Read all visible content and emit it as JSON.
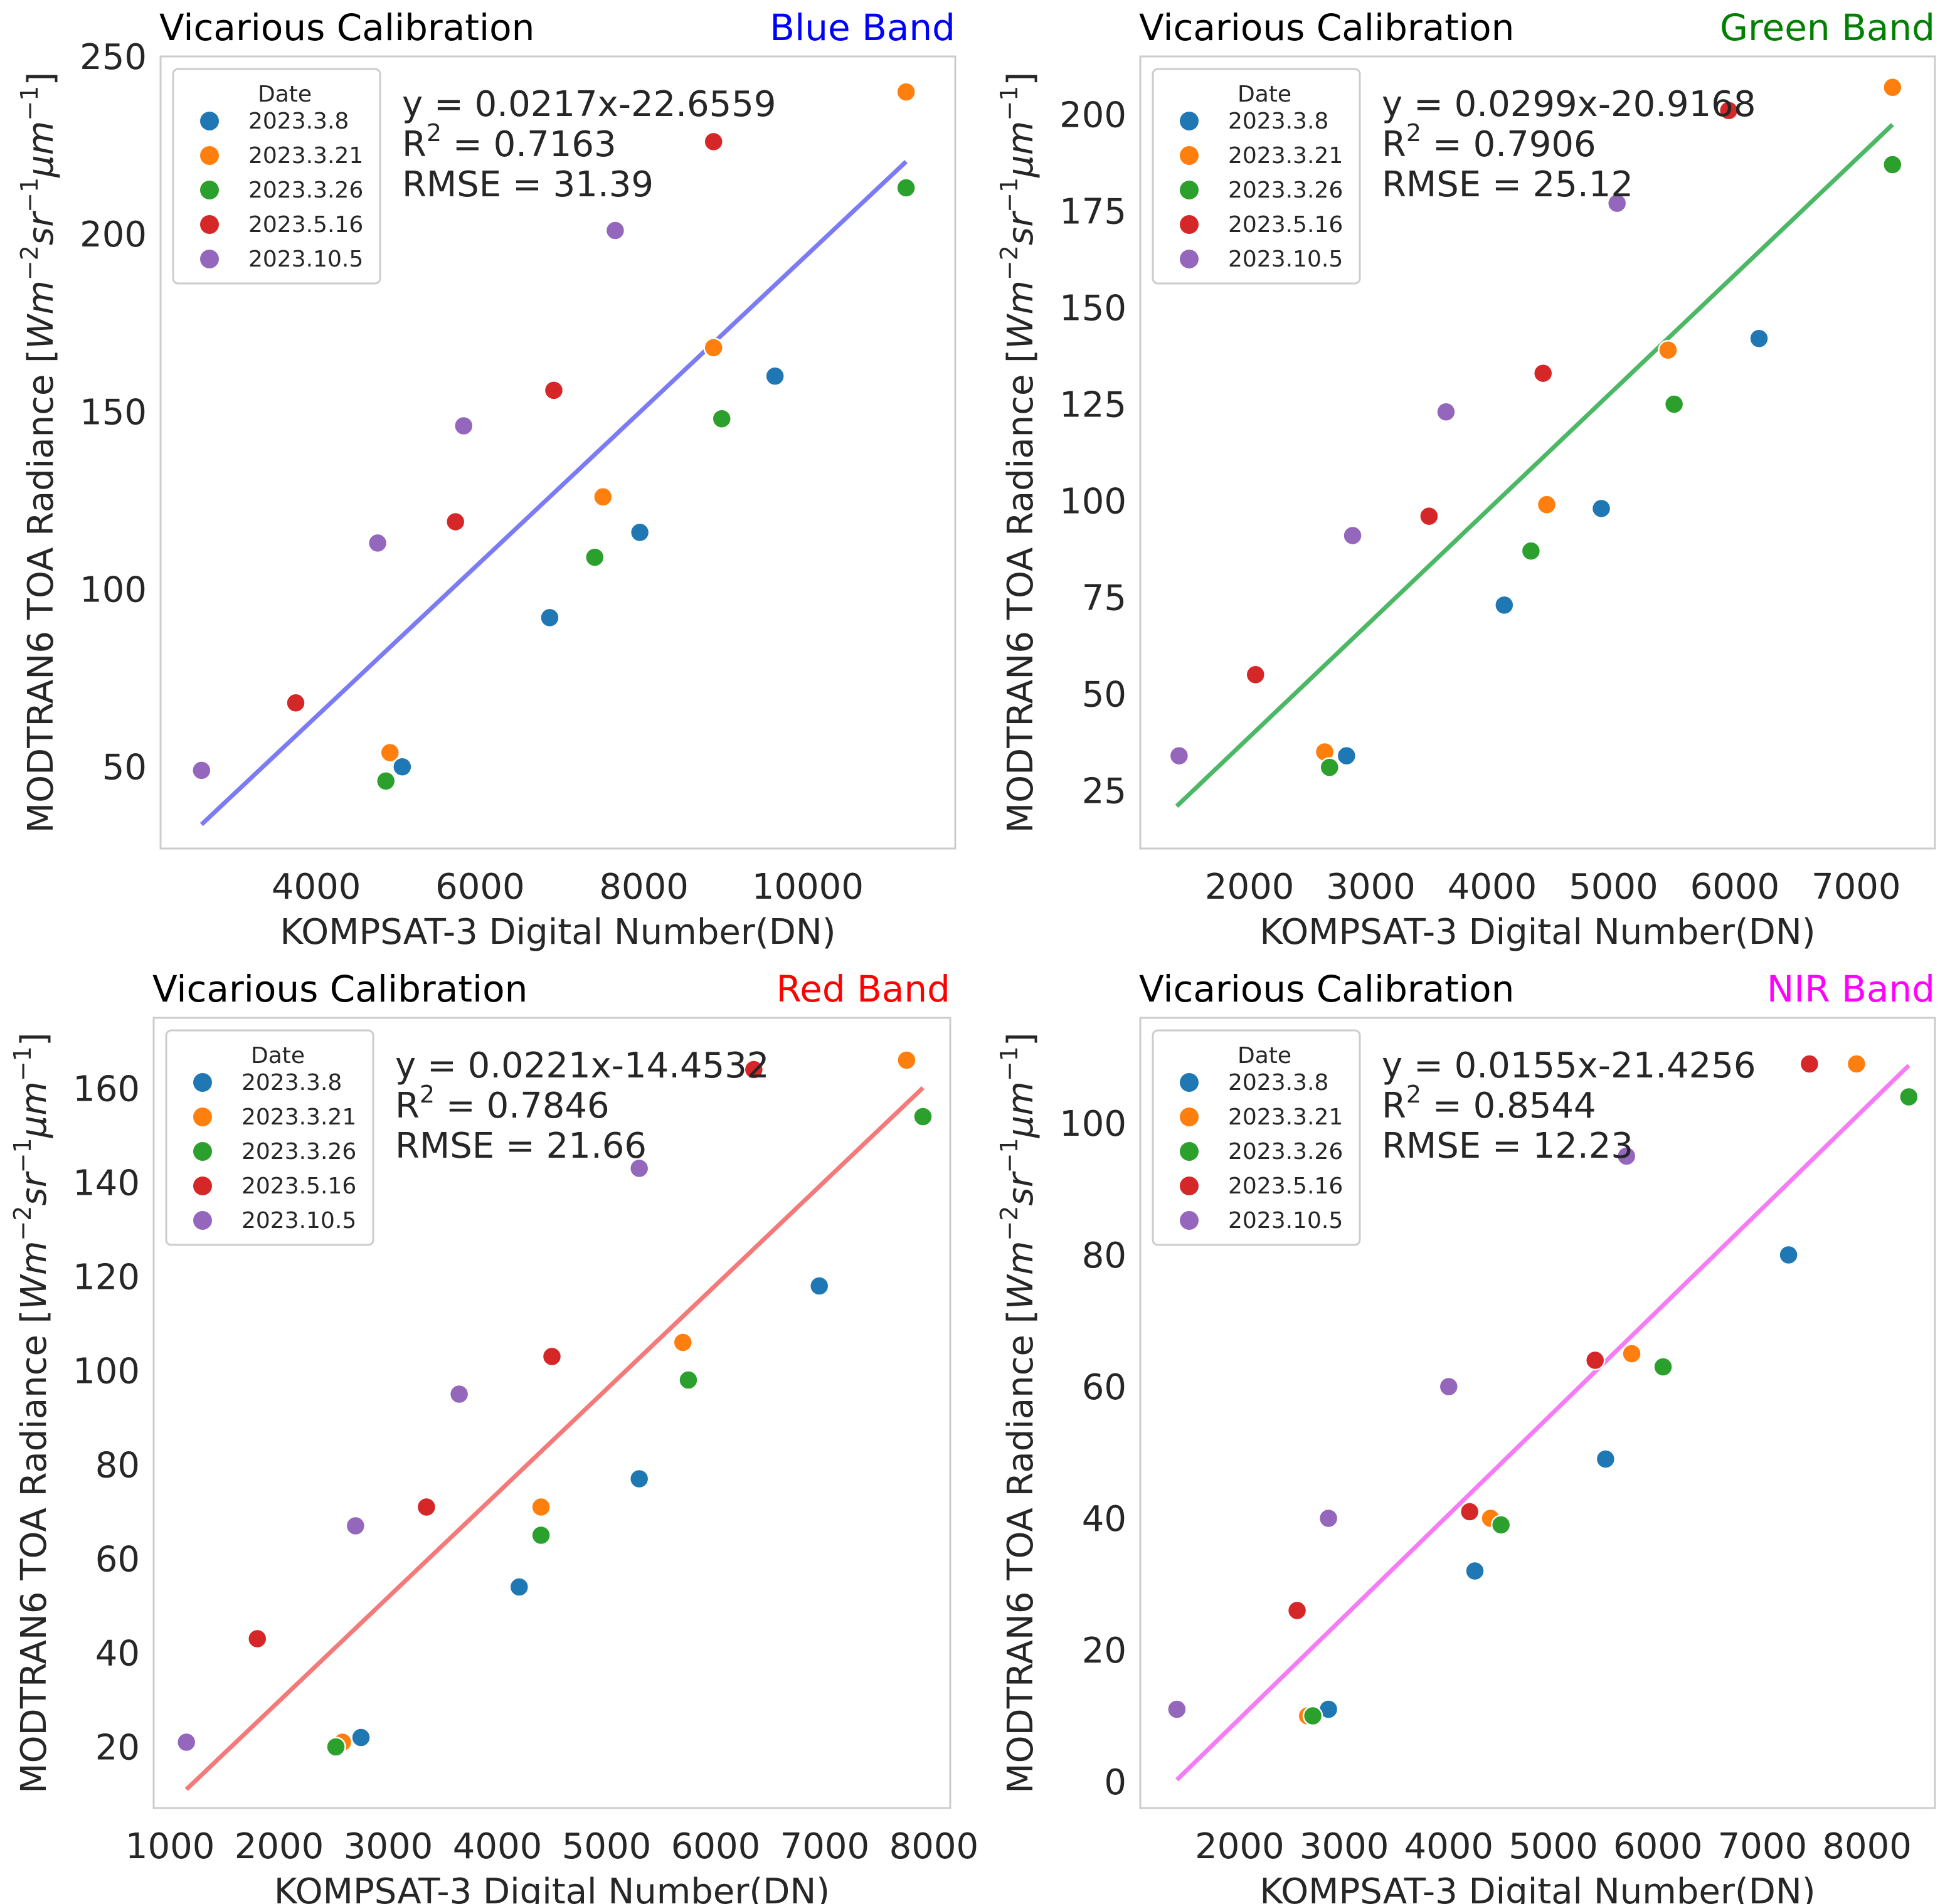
{
  "figure": {
    "xlabel": "KOMPSAT-3 Digital Number(DN)",
    "ylabel_main": "MODTRAN6 TOA Radiance [",
    "ylabel_unit": "Wm",
    "ylabel_exp1": "−2",
    "ylabel_mid": "sr",
    "ylabel_exp2": "−1",
    "ylabel_mu": "μm",
    "ylabel_exp3": "−1",
    "ylabel_close": "]",
    "legend_title": "Date",
    "dates": [
      "2023.3.8",
      "2023.3.21",
      "2023.3.26",
      "2023.5.16",
      "2023.10.5"
    ],
    "date_colors": [
      "#1f77b4",
      "#ff7f0e",
      "#2ca02c",
      "#d62728",
      "#9467bd"
    ]
  },
  "chart_data": [
    {
      "type": "scatter",
      "title": "Vicarious Calibration",
      "band_label": "Blue Band",
      "band_color": "#0000ff",
      "equation": "y = 0.0217x-22.6559",
      "r2_prefix": "R",
      "r2_sup": "2",
      "r2_value": " = 0.7163",
      "rmse": "RMSE = 31.39",
      "fit_color": "#7b7bf5",
      "slope": 0.0217,
      "intercept": -22.6559,
      "fit_xrange": [
        2600,
        11200
      ],
      "xlim": [
        2100,
        11800
      ],
      "ylim": [
        27,
        250
      ],
      "xticks": [
        4000,
        6000,
        8000,
        10000
      ],
      "yticks": [
        50,
        100,
        150,
        200,
        250
      ],
      "series": [
        {
          "name": "2023.3.8",
          "x": [
            6850,
            7950,
            5050,
            9600
          ],
          "y": [
            92,
            116,
            50,
            160
          ]
        },
        {
          "name": "2023.3.21",
          "x": [
            11200,
            8850,
            7500,
            4900
          ],
          "y": [
            240,
            168,
            126,
            54
          ]
        },
        {
          "name": "2023.3.26",
          "x": [
            11200,
            8950,
            7400,
            4850
          ],
          "y": [
            213,
            148,
            109,
            46
          ]
        },
        {
          "name": "2023.5.16",
          "x": [
            8850,
            6900,
            5700,
            3750
          ],
          "y": [
            226,
            156,
            119,
            68
          ]
        },
        {
          "name": "2023.10.5",
          "x": [
            7650,
            5800,
            4750,
            2600
          ],
          "y": [
            201,
            146,
            113,
            49
          ]
        }
      ]
    },
    {
      "type": "scatter",
      "title": "Vicarious Calibration",
      "band_label": "Green Band",
      "band_color": "#008000",
      "equation": "y = 0.0299x-20.9168",
      "r2_prefix": "R",
      "r2_sup": "2",
      "r2_value": " = 0.7906",
      "rmse": "RMSE = 25.12",
      "fit_color": "#4cb865",
      "slope": 0.0299,
      "intercept": -20.9168,
      "fit_xrange": [
        1400,
        7300
      ],
      "xlim": [
        1100,
        7650
      ],
      "ylim": [
        10,
        215
      ],
      "xticks": [
        2000,
        3000,
        4000,
        5000,
        6000,
        7000
      ],
      "yticks": [
        25,
        50,
        75,
        100,
        125,
        150,
        175,
        200
      ],
      "series": [
        {
          "name": "2023.3.8",
          "x": [
            6200,
            4900,
            4100,
            2800
          ],
          "y": [
            142,
            98,
            73,
            34
          ]
        },
        {
          "name": "2023.3.21",
          "x": [
            7300,
            5450,
            4450,
            2620
          ],
          "y": [
            207,
            139,
            99,
            35
          ]
        },
        {
          "name": "2023.3.26",
          "x": [
            7300,
            5500,
            4320,
            2660
          ],
          "y": [
            187,
            125,
            87,
            31
          ]
        },
        {
          "name": "2023.5.16",
          "x": [
            5950,
            4420,
            3480,
            2050
          ],
          "y": [
            201,
            133,
            96,
            55
          ]
        },
        {
          "name": "2023.10.5",
          "x": [
            5030,
            3620,
            2850,
            1420
          ],
          "y": [
            177,
            123,
            91,
            34
          ]
        }
      ]
    },
    {
      "type": "scatter",
      "title": "Vicarious Calibration",
      "band_label": "Red Band",
      "band_color": "#ff0000",
      "equation": "y = 0.0221x-14.4532",
      "r2_prefix": "R",
      "r2_sup": "2",
      "r2_value": " = 0.7846",
      "rmse": "RMSE = 21.66",
      "fit_color": "#f47a7a",
      "slope": 0.0221,
      "intercept": -14.4532,
      "fit_xrange": [
        1150,
        7900
      ],
      "xlim": [
        850,
        8150
      ],
      "ylim": [
        7,
        175
      ],
      "xticks": [
        1000,
        2000,
        3000,
        4000,
        5000,
        6000,
        7000,
        8000
      ],
      "yticks": [
        20,
        40,
        60,
        80,
        100,
        120,
        140,
        160
      ],
      "series": [
        {
          "name": "2023.3.8",
          "x": [
            6950,
            5300,
            4200,
            2750
          ],
          "y": [
            118,
            77,
            54,
            22
          ]
        },
        {
          "name": "2023.3.21",
          "x": [
            7750,
            5700,
            4400,
            2580
          ],
          "y": [
            166,
            106,
            71,
            21
          ]
        },
        {
          "name": "2023.3.26",
          "x": [
            7900,
            5750,
            4400,
            2520
          ],
          "y": [
            154,
            98,
            65,
            20
          ]
        },
        {
          "name": "2023.5.16",
          "x": [
            6350,
            4500,
            3350,
            1800
          ],
          "y": [
            164,
            103,
            71,
            43
          ]
        },
        {
          "name": "2023.10.5",
          "x": [
            5300,
            3650,
            2700,
            1150
          ],
          "y": [
            143,
            95,
            67,
            21
          ]
        }
      ]
    },
    {
      "type": "scatter",
      "title": "Vicarious Calibration",
      "band_label": "NIR Band",
      "band_color": "#ff00ff",
      "equation": "y = 0.0155x-21.4256",
      "r2_prefix": "R",
      "r2_sup": "2",
      "r2_value": " = 0.8544",
      "rmse": "RMSE = 12.23",
      "fit_color": "#f57cf5",
      "slope": 0.0155,
      "intercept": -21.4256,
      "fit_xrange": [
        1400,
        8400
      ],
      "xlim": [
        1050,
        8650
      ],
      "ylim": [
        -4,
        116
      ],
      "xticks": [
        2000,
        3000,
        4000,
        5000,
        6000,
        7000,
        8000
      ],
      "yticks": [
        0,
        20,
        40,
        60,
        80,
        100
      ],
      "series": [
        {
          "name": "2023.3.8",
          "x": [
            7250,
            5500,
            4250,
            2850
          ],
          "y": [
            80,
            49,
            32,
            11
          ]
        },
        {
          "name": "2023.3.21",
          "x": [
            7900,
            5750,
            4400,
            2650
          ],
          "y": [
            109,
            65,
            40,
            10
          ]
        },
        {
          "name": "2023.3.26",
          "x": [
            8400,
            6050,
            4500,
            2700
          ],
          "y": [
            104,
            63,
            39,
            10
          ]
        },
        {
          "name": "2023.5.16",
          "x": [
            7450,
            5400,
            4200,
            2550
          ],
          "y": [
            109,
            64,
            41,
            26
          ]
        },
        {
          "name": "2023.10.5",
          "x": [
            5700,
            4000,
            2850,
            1400
          ],
          "y": [
            95,
            60,
            40,
            11
          ]
        }
      ]
    }
  ]
}
